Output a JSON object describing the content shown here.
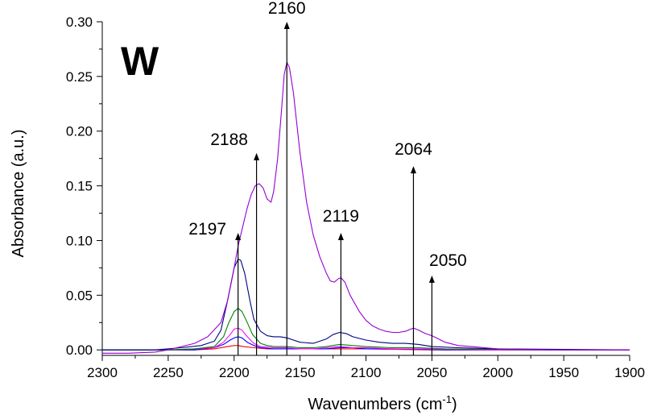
{
  "chart_data": {
    "type": "line",
    "panel_label": "W",
    "xlabel": "Wavenumbers (cm",
    "xlabel_sup": "-1",
    "xlabel_end": ")",
    "ylabel": "Absorbance (a.u.)",
    "xlim": [
      2300,
      1900
    ],
    "ylim": [
      -0.005,
      0.3
    ],
    "x_ticks": [
      2300,
      2250,
      2200,
      2150,
      2100,
      2050,
      2000,
      1950,
      1900
    ],
    "x_tick_labels": [
      "2300",
      "2250",
      "2200",
      "2150",
      "2100",
      "2050",
      "2000",
      "1950",
      "1900"
    ],
    "y_ticks": [
      0.0,
      0.05,
      0.1,
      0.15,
      0.2,
      0.25,
      0.3
    ],
    "y_tick_labels": [
      "0.00",
      "0.05",
      "0.10",
      "0.15",
      "0.20",
      "0.25",
      "0.30"
    ],
    "grid": false,
    "series": [
      {
        "color": "#9400d3",
        "x": [
          2300,
          2280,
          2260,
          2250,
          2240,
          2230,
          2220,
          2210,
          2205,
          2200,
          2197,
          2193,
          2190,
          2187,
          2184,
          2181,
          2178,
          2175,
          2172,
          2170,
          2167,
          2164,
          2162,
          2160,
          2158,
          2155,
          2150,
          2145,
          2140,
          2135,
          2130,
          2127,
          2124,
          2121,
          2119,
          2116,
          2112,
          2105,
          2100,
          2095,
          2090,
          2085,
          2080,
          2075,
          2070,
          2066,
          2064,
          2060,
          2055,
          2050,
          2045,
          2040,
          2030,
          2020,
          2010,
          2000,
          1990,
          1980,
          1960,
          1940,
          1920,
          1900
        ],
        "y": [
          -0.003,
          -0.003,
          -0.002,
          0.0,
          0.003,
          0.006,
          0.012,
          0.025,
          0.045,
          0.075,
          0.095,
          0.115,
          0.13,
          0.142,
          0.15,
          0.152,
          0.148,
          0.138,
          0.135,
          0.145,
          0.175,
          0.22,
          0.252,
          0.263,
          0.258,
          0.235,
          0.18,
          0.135,
          0.105,
          0.085,
          0.07,
          0.063,
          0.062,
          0.065,
          0.066,
          0.062,
          0.05,
          0.035,
          0.027,
          0.022,
          0.019,
          0.017,
          0.016,
          0.016,
          0.017,
          0.019,
          0.02,
          0.018,
          0.015,
          0.013,
          0.01,
          0.007,
          0.004,
          0.003,
          0.002,
          0.001,
          0.0008,
          0.0005,
          0.0,
          0.0,
          0.0,
          0.0
        ]
      },
      {
        "color": "#000080",
        "x": [
          2300,
          2260,
          2240,
          2225,
          2215,
          2210,
          2205,
          2200,
          2197,
          2195,
          2192,
          2188,
          2185,
          2180,
          2175,
          2170,
          2165,
          2160,
          2155,
          2150,
          2140,
          2130,
          2125,
          2120,
          2115,
          2110,
          2100,
          2090,
          2080,
          2070,
          2060,
          2050,
          2030,
          2000,
          1950,
          1900
        ],
        "y": [
          0.0,
          0.0,
          0.002,
          0.004,
          0.008,
          0.018,
          0.045,
          0.075,
          0.083,
          0.082,
          0.07,
          0.045,
          0.028,
          0.017,
          0.013,
          0.012,
          0.012,
          0.011,
          0.009,
          0.007,
          0.006,
          0.01,
          0.014,
          0.016,
          0.015,
          0.012,
          0.009,
          0.007,
          0.006,
          0.006,
          0.005,
          0.003,
          0.002,
          0.001,
          0.0005,
          0.0
        ]
      },
      {
        "color": "#008000",
        "x": [
          2300,
          2250,
          2230,
          2215,
          2208,
          2204,
          2200,
          2197,
          2194,
          2190,
          2186,
          2180,
          2175,
          2170,
          2160,
          2150,
          2140,
          2130,
          2120,
          2110,
          2100,
          2080,
          2060,
          2040,
          2000,
          1950,
          1900
        ],
        "y": [
          0.0,
          0.0,
          0.001,
          0.003,
          0.012,
          0.025,
          0.035,
          0.038,
          0.035,
          0.025,
          0.014,
          0.006,
          0.004,
          0.003,
          0.003,
          0.002,
          0.002,
          0.003,
          0.005,
          0.004,
          0.003,
          0.002,
          0.002,
          0.001,
          0.0005,
          0.0,
          0.0
        ]
      },
      {
        "color": "#ff00ff",
        "x": [
          2300,
          2250,
          2230,
          2215,
          2208,
          2203,
          2200,
          2197,
          2194,
          2190,
          2185,
          2180,
          2170,
          2160,
          2150,
          2140,
          2130,
          2120,
          2110,
          2100,
          2080,
          2060,
          2040,
          2000,
          1950,
          1900
        ],
        "y": [
          0.0,
          0.0,
          0.001,
          0.002,
          0.007,
          0.014,
          0.019,
          0.02,
          0.018,
          0.012,
          0.006,
          0.003,
          0.002,
          0.002,
          0.001,
          0.001,
          0.002,
          0.003,
          0.002,
          0.002,
          0.001,
          0.001,
          0.0005,
          0.0,
          0.0,
          0.0
        ]
      },
      {
        "color": "#0000ff",
        "x": [
          2300,
          2250,
          2230,
          2215,
          2208,
          2203,
          2200,
          2197,
          2194,
          2190,
          2185,
          2180,
          2170,
          2160,
          2150,
          2130,
          2120,
          2110,
          2100,
          2080,
          2060,
          2040,
          2000,
          1900
        ],
        "y": [
          0.0,
          0.0,
          0.0,
          0.002,
          0.005,
          0.009,
          0.011,
          0.012,
          0.011,
          0.007,
          0.004,
          0.002,
          0.001,
          0.001,
          0.001,
          0.001,
          0.002,
          0.002,
          0.001,
          0.001,
          0.0005,
          0.0,
          0.0,
          0.0
        ]
      },
      {
        "color": "#ff0000",
        "x": [
          2300,
          2250,
          2230,
          2215,
          2205,
          2200,
          2197,
          2193,
          2185,
          2175,
          2160,
          2140,
          2120,
          2100,
          2080,
          2050,
          2000,
          1900
        ],
        "y": [
          0.0,
          0.0,
          0.0,
          0.001,
          0.003,
          0.004,
          0.004,
          0.003,
          0.002,
          0.001,
          0.001,
          0.001,
          0.001,
          0.001,
          0.0005,
          0.0,
          0.0,
          0.0
        ]
      }
    ],
    "annotations": [
      {
        "label": "2197",
        "x": 2197,
        "y_top": 0.107
      },
      {
        "label": "2188",
        "x": 2183,
        "y_top": 0.18
      },
      {
        "label": "2160",
        "x": 2160,
        "y_top": 0.3
      },
      {
        "label": "2119",
        "x": 2119,
        "y_top": 0.107
      },
      {
        "label": "2064",
        "x": 2064,
        "y_top": 0.168
      },
      {
        "label": "2050",
        "x": 2050,
        "y_top": 0.068
      }
    ]
  }
}
